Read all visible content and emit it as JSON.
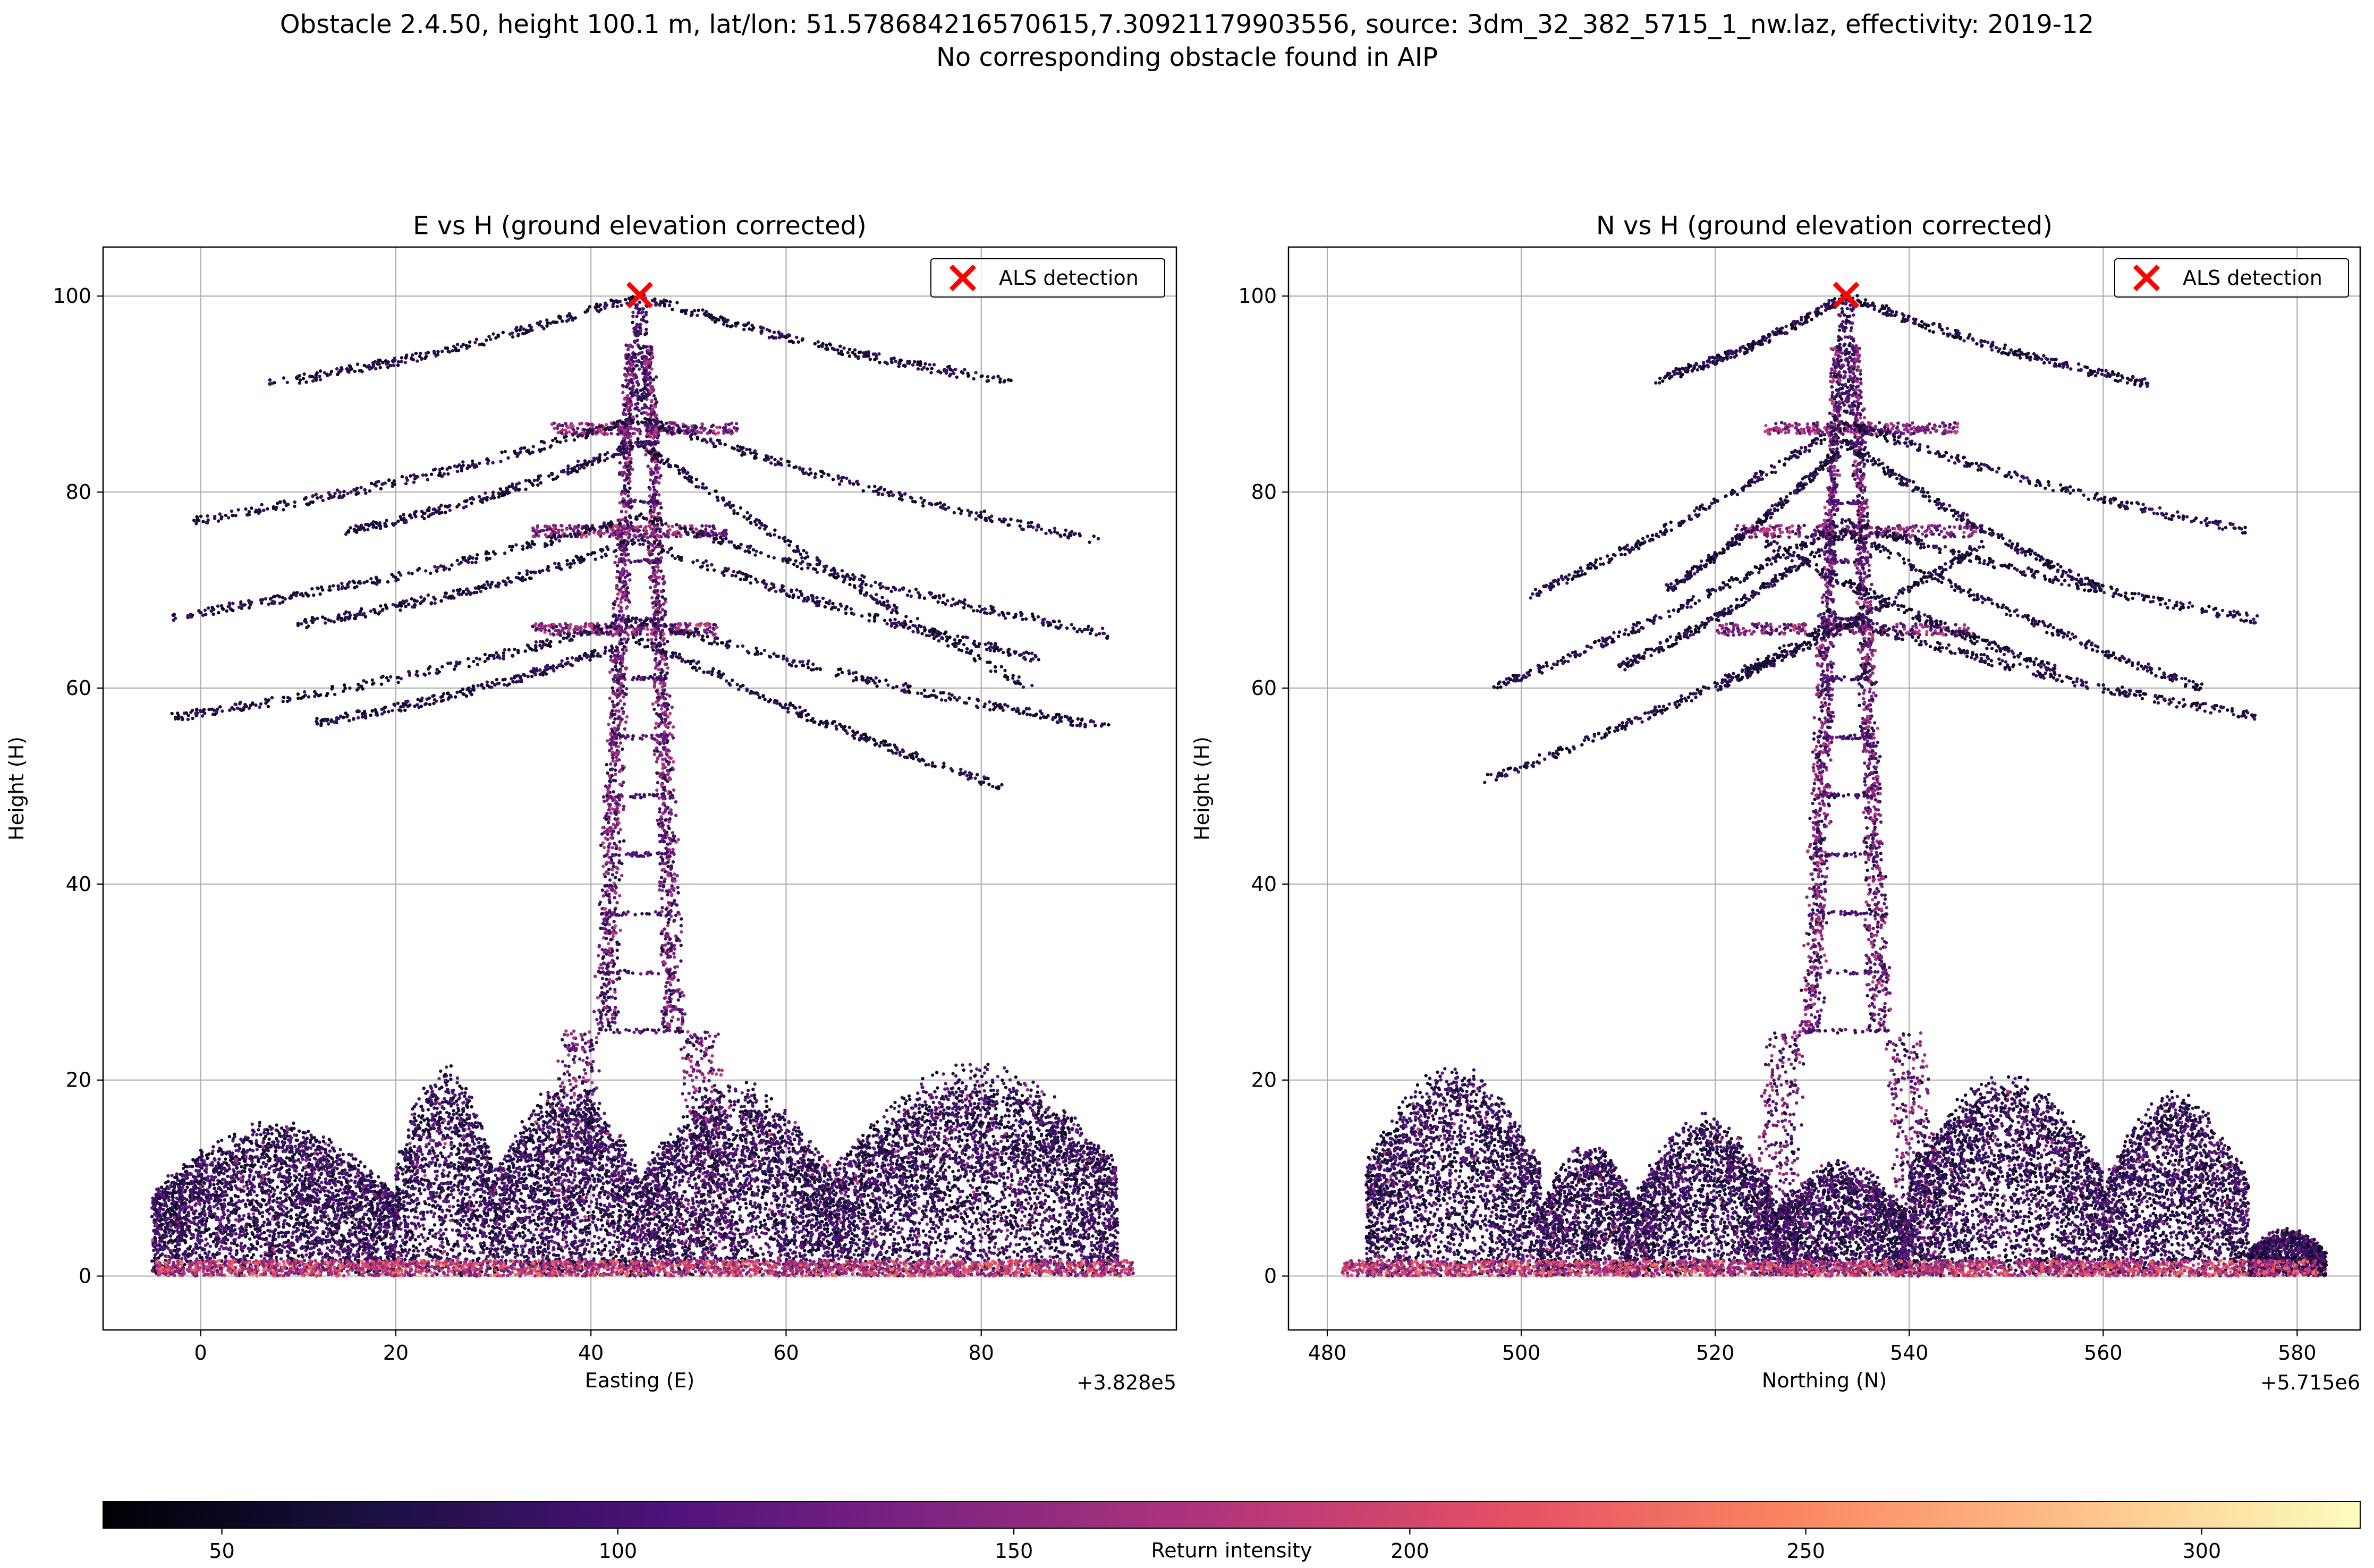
{
  "figure": {
    "suptitle_line1": "Obstacle 2.4.50, height 100.1 m, lat/lon: 51.578684216570615,7.30921179903556, source: 3dm_32_382_5715_1_nw.laz, effectivity: 2019-12",
    "suptitle_line2": "No corresponding obstacle found in AIP"
  },
  "chart_data": [
    {
      "type": "scatter",
      "title": "E vs H (ground elevation corrected)",
      "xlabel": "Easting (E)",
      "ylabel": "Height (H)",
      "x_offset_label": "+3.828e5",
      "xlim": [
        -10,
        100
      ],
      "ylim": [
        -5.5,
        105
      ],
      "xticks": [
        0,
        20,
        40,
        60,
        80
      ],
      "yticks": [
        0,
        20,
        40,
        60,
        80,
        100
      ],
      "grid": true,
      "legend_position": "upper right",
      "series": [
        {
          "name": "ALS detection",
          "marker": "x",
          "color": "#ff0000",
          "points": [
            [
              45,
              100.1
            ]
          ]
        }
      ],
      "point_cloud": {
        "color_by": "Return intensity",
        "tower_x": 45,
        "tower_top": 100.1,
        "structure_lines": [
          {
            "x0": -1,
            "y0": 77,
            "x1": 45,
            "y1": 87.5
          },
          {
            "x0": 45,
            "y0": 87.5,
            "x1": 92,
            "y1": 75
          },
          {
            "x0": -3,
            "y0": 67.3,
            "x1": 45,
            "y1": 77.5
          },
          {
            "x0": 45,
            "y0": 77.5,
            "x1": 93,
            "y1": 65.5
          },
          {
            "x0": -3,
            "y0": 57,
            "x1": 45,
            "y1": 67
          },
          {
            "x0": 45,
            "y0": 67,
            "x1": 93,
            "y1": 56
          },
          {
            "x0": 7,
            "y0": 91,
            "x1": 45,
            "y1": 100
          },
          {
            "x0": 45,
            "y0": 100,
            "x1": 83,
            "y1": 91.3
          },
          {
            "x0": 12,
            "y0": 56.5,
            "x1": 45,
            "y1": 65
          },
          {
            "x0": 45,
            "y0": 65,
            "x1": 82,
            "y1": 50
          },
          {
            "x0": 15,
            "y0": 76,
            "x1": 45,
            "y1": 85
          },
          {
            "x0": 45,
            "y0": 85,
            "x1": 85,
            "y1": 60
          },
          {
            "x0": 10,
            "y0": 66.5,
            "x1": 45,
            "y1": 75
          },
          {
            "x0": 45,
            "y0": 75,
            "x1": 86,
            "y1": 63
          }
        ],
        "crossarms": [
          [
            36,
            55,
            86.5
          ],
          [
            34,
            54,
            76
          ],
          [
            34,
            53,
            66
          ]
        ],
        "vegetation": [
          {
            "x0": -5,
            "x1": 20,
            "hmax": 16
          },
          {
            "x0": 20,
            "x1": 30,
            "hmax": 22
          },
          {
            "x0": 30,
            "x1": 45,
            "hmax": 20
          },
          {
            "x0": 45,
            "x1": 65,
            "hmax": 20
          },
          {
            "x0": 65,
            "x1": 94,
            "hmax": 22
          }
        ]
      }
    },
    {
      "type": "scatter",
      "title": "N vs H (ground elevation corrected)",
      "xlabel": "Northing (N)",
      "ylabel": "Height (H)",
      "x_offset_label": "+5.715e6",
      "xlim": [
        476,
        586.5
      ],
      "ylim": [
        -5.5,
        105
      ],
      "xticks": [
        480,
        500,
        520,
        540,
        560,
        580
      ],
      "yticks": [
        0,
        20,
        40,
        60,
        80,
        100
      ],
      "grid": true,
      "legend_position": "upper right",
      "series": [
        {
          "name": "ALS detection",
          "marker": "x",
          "color": "#ff0000",
          "points": [
            [
              533.5,
              100.1
            ]
          ]
        }
      ],
      "point_cloud": {
        "color_by": "Return intensity",
        "tower_x": 533.5,
        "tower_top": 100.1,
        "structure_lines": [
          {
            "x0": 501,
            "y0": 69.5,
            "x1": 533.5,
            "y1": 87
          },
          {
            "x0": 533.5,
            "y0": 87,
            "x1": 575,
            "y1": 76
          },
          {
            "x0": 497,
            "y0": 60,
            "x1": 533.5,
            "y1": 77
          },
          {
            "x0": 533.5,
            "y0": 77,
            "x1": 576,
            "y1": 67
          },
          {
            "x0": 496,
            "y0": 50.5,
            "x1": 533.5,
            "y1": 67
          },
          {
            "x0": 533.5,
            "y0": 67,
            "x1": 576,
            "y1": 57
          },
          {
            "x0": 514,
            "y0": 91.5,
            "x1": 533.5,
            "y1": 100
          },
          {
            "x0": 533.5,
            "y0": 100,
            "x1": 565,
            "y1": 91
          },
          {
            "x0": 510,
            "y0": 62,
            "x1": 533.5,
            "y1": 76
          },
          {
            "x0": 533.5,
            "y0": 76,
            "x1": 570,
            "y1": 60
          },
          {
            "x0": 515,
            "y0": 70,
            "x1": 533.5,
            "y1": 85
          },
          {
            "x0": 533.5,
            "y0": 85,
            "x1": 560,
            "y1": 70
          },
          {
            "x0": 520,
            "y0": 60,
            "x1": 548,
            "y1": 75
          },
          {
            "x0": 525,
            "y0": 75,
            "x1": 555,
            "y1": 62
          }
        ],
        "crossarms": [
          [
            525,
            545,
            86.5
          ],
          [
            522,
            547,
            76
          ],
          [
            520,
            547,
            66
          ]
        ],
        "vegetation": [
          {
            "x0": 484,
            "x1": 502,
            "hmax": 22
          },
          {
            "x0": 502,
            "x1": 512,
            "hmax": 14
          },
          {
            "x0": 512,
            "x1": 526,
            "hmax": 17
          },
          {
            "x0": 526,
            "x1": 540,
            "hmax": 12
          },
          {
            "x0": 540,
            "x1": 560,
            "hmax": 21
          },
          {
            "x0": 560,
            "x1": 575,
            "hmax": 19
          },
          {
            "x0": 575,
            "x1": 583,
            "hmax": 5
          }
        ]
      }
    }
  ],
  "colorbar": {
    "label": "Return intensity",
    "range": [
      35,
      320
    ],
    "ticks": [
      50,
      100,
      150,
      200,
      250,
      300
    ],
    "colormap": "magma",
    "stops": [
      "#000004",
      "#1c1044",
      "#4f127b",
      "#812581",
      "#b5367a",
      "#e55064",
      "#fb8761",
      "#fec287",
      "#fcfdbf"
    ]
  }
}
